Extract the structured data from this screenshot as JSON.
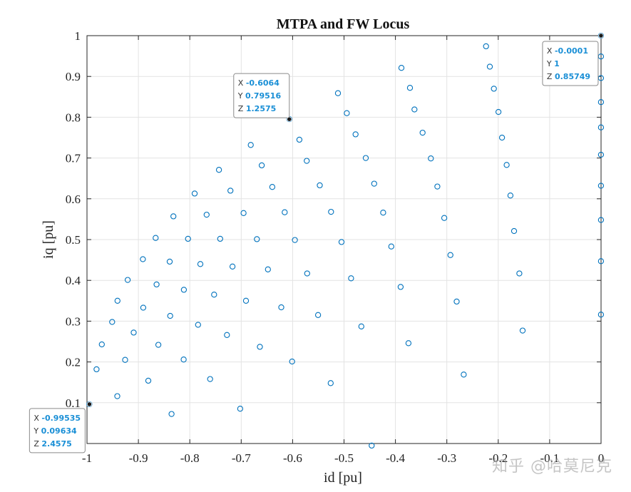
{
  "chart_data": {
    "type": "scatter",
    "title": "MTPA and FW Locus",
    "xlabel": "id [pu]",
    "ylabel": "iq [pu]",
    "xlim": [
      -1,
      0
    ],
    "ylim": [
      0,
      1
    ],
    "xticks": [
      "-1",
      "-0.9",
      "-0.8",
      "-0.7",
      "-0.6",
      "-0.5",
      "-0.4",
      "-0.3",
      "-0.2",
      "-0.1",
      "0"
    ],
    "yticks": [
      "",
      "0.1",
      "0.2",
      "0.3",
      "0.4",
      "0.5",
      "0.6",
      "0.7",
      "0.8",
      "0.9",
      "1"
    ],
    "grid": true,
    "marker": "circle-open",
    "marker_color": "#0072bd",
    "points": [
      [
        -0.9954,
        0.0963
      ],
      [
        -0.9814,
        0.182
      ],
      [
        -0.9411,
        0.116
      ],
      [
        -0.9711,
        0.243
      ],
      [
        -0.9511,
        0.298
      ],
      [
        -0.9407,
        0.35
      ],
      [
        -0.9208,
        0.401
      ],
      [
        -0.8913,
        0.452
      ],
      [
        -0.8665,
        0.504
      ],
      [
        -0.8319,
        0.557
      ],
      [
        -0.7906,
        0.613
      ],
      [
        -0.7433,
        0.671
      ],
      [
        -0.6814,
        0.732
      ],
      [
        -0.6064,
        0.7952
      ],
      [
        -0.5868,
        0.745
      ],
      [
        -0.5118,
        0.859
      ],
      [
        -0.4946,
        0.81
      ],
      [
        -0.3883,
        0.921
      ],
      [
        -0.3717,
        0.872
      ],
      [
        -0.2237,
        0.974
      ],
      [
        -0.2164,
        0.924
      ],
      [
        -0.0001,
        1.0
      ],
      [
        -0.0001,
        0.949
      ],
      [
        -0.0001,
        0.896
      ],
      [
        -0.0001,
        0.837
      ],
      [
        -0.0001,
        0.775
      ],
      [
        -0.0001,
        0.708
      ],
      [
        -0.0001,
        0.632
      ],
      [
        -0.0001,
        0.548
      ],
      [
        -0.0001,
        0.447
      ],
      [
        -0.0001,
        0.316
      ],
      [
        -0.9258,
        0.205
      ],
      [
        -0.9092,
        0.272
      ],
      [
        -0.8906,
        0.333
      ],
      [
        -0.8647,
        0.39
      ],
      [
        -0.8391,
        0.446
      ],
      [
        -0.8034,
        0.502
      ],
      [
        -0.7672,
        0.561
      ],
      [
        -0.721,
        0.62
      ],
      [
        -0.66,
        0.682
      ],
      [
        -0.5725,
        0.693
      ],
      [
        -0.4776,
        0.758
      ],
      [
        -0.4577,
        0.7
      ],
      [
        -0.363,
        0.819
      ],
      [
        -0.2085,
        0.87
      ],
      [
        -0.1996,
        0.813
      ],
      [
        -0.8807,
        0.154
      ],
      [
        -0.8612,
        0.242
      ],
      [
        -0.8382,
        0.313
      ],
      [
        -0.8115,
        0.377
      ],
      [
        -0.7795,
        0.44
      ],
      [
        -0.7409,
        0.502
      ],
      [
        -0.6954,
        0.565
      ],
      [
        -0.6395,
        0.629
      ],
      [
        -0.5472,
        0.633
      ],
      [
        -0.4413,
        0.637
      ],
      [
        -0.3471,
        0.762
      ],
      [
        -0.3311,
        0.699
      ],
      [
        -0.1926,
        0.75
      ],
      [
        -0.1836,
        0.683
      ],
      [
        -0.8355,
        0.0723
      ],
      [
        -0.8119,
        0.206
      ],
      [
        -0.7839,
        0.291
      ],
      [
        -0.7527,
        0.365
      ],
      [
        -0.7169,
        0.434
      ],
      [
        -0.6695,
        0.501
      ],
      [
        -0.6154,
        0.567
      ],
      [
        -0.5253,
        0.568
      ],
      [
        -0.4238,
        0.566
      ],
      [
        -0.3185,
        0.63
      ],
      [
        -0.305,
        0.553
      ],
      [
        -0.1763,
        0.608
      ],
      [
        -0.1692,
        0.521
      ],
      [
        -0.7605,
        0.158
      ],
      [
        -0.7277,
        0.266
      ],
      [
        -0.6907,
        0.35
      ],
      [
        -0.648,
        0.427
      ],
      [
        -0.5955,
        0.499
      ],
      [
        -0.5048,
        0.494
      ],
      [
        -0.4081,
        0.483
      ],
      [
        -0.293,
        0.462
      ],
      [
        -0.159,
        0.417
      ],
      [
        -0.7019,
        0.0853
      ],
      [
        -0.6637,
        0.237
      ],
      [
        -0.622,
        0.334
      ],
      [
        -0.5717,
        0.417
      ],
      [
        -0.4862,
        0.405
      ],
      [
        -0.3899,
        0.384
      ],
      [
        -0.2809,
        0.348
      ],
      [
        -0.1525,
        0.277
      ],
      [
        -0.601,
        0.201
      ],
      [
        -0.5505,
        0.315
      ],
      [
        -0.4663,
        0.287
      ],
      [
        -0.3746,
        0.246
      ],
      [
        -0.2671,
        0.169
      ],
      [
        -0.526,
        0.148
      ],
      [
        -0.4462,
        -0.005
      ]
    ],
    "datatips": [
      {
        "x_key": "X",
        "x": "-0.6064",
        "y_key": "Y",
        "y": "0.79516",
        "z_key": "Z",
        "z": "1.2575",
        "px": -0.6064,
        "py": 0.79516
      },
      {
        "x_key": "X",
        "x": "-0.0001",
        "y_key": "Y",
        "y": "1",
        "z_key": "Z",
        "z": "0.85749",
        "px": -0.0001,
        "py": 1.0
      },
      {
        "x_key": "X",
        "x": "-0.99535",
        "y_key": "Y",
        "y": "0.09634",
        "z_key": "Z",
        "z": "2.4575",
        "px": -0.99535,
        "py": 0.09634
      }
    ]
  },
  "watermark": "知乎 @哈莫尼克"
}
